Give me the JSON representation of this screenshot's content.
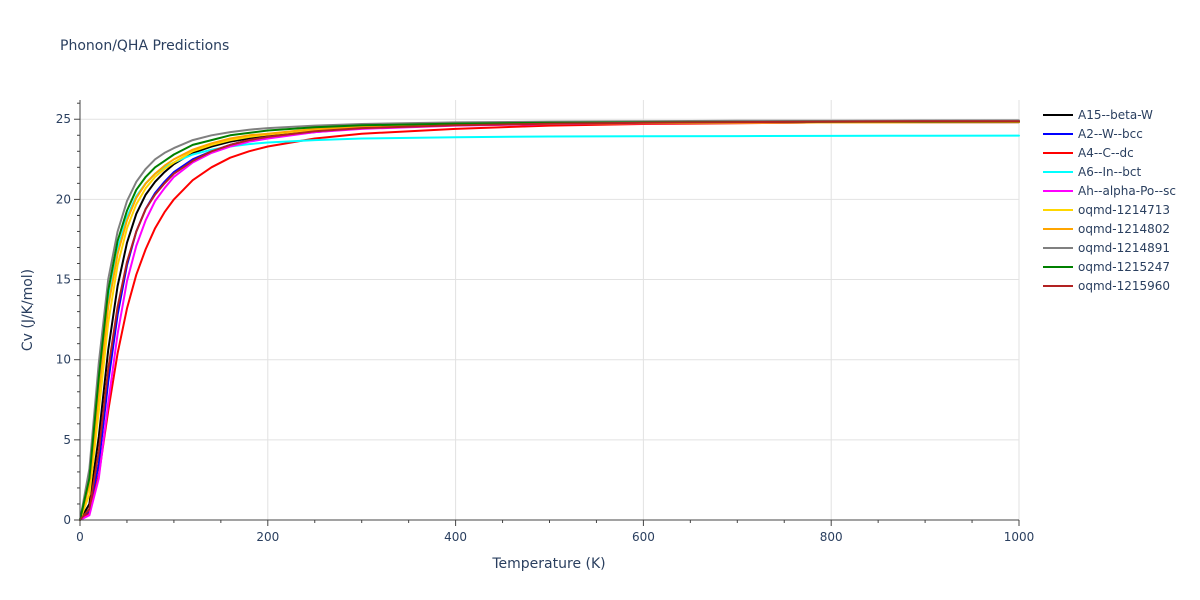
{
  "chart_data": {
    "type": "line",
    "title": "Phonon/QHA Predictions",
    "xlabel": "Temperature (K)",
    "ylabel": "Cv (J/K/mol)",
    "xlim": [
      0,
      1000
    ],
    "ylim": [
      0,
      26.2
    ],
    "x_ticks": [
      0,
      200,
      400,
      600,
      800,
      1000
    ],
    "y_ticks": [
      0,
      5,
      10,
      15,
      20,
      25
    ],
    "grid": true,
    "legend_position": "right",
    "x": [
      0,
      10,
      20,
      30,
      40,
      50,
      60,
      70,
      80,
      90,
      100,
      120,
      140,
      160,
      180,
      200,
      250,
      300,
      400,
      500,
      600,
      700,
      800,
      900,
      1000
    ],
    "series": [
      {
        "name": "A15--beta-W",
        "color": "#000000",
        "values": [
          0,
          1.0,
          5.2,
          10.6,
          14.6,
          17.3,
          19.1,
          20.3,
          21.1,
          21.7,
          22.2,
          22.9,
          23.3,
          23.6,
          23.8,
          24.0,
          24.3,
          24.5,
          24.65,
          24.72,
          24.76,
          24.78,
          24.8,
          24.81,
          24.82
        ]
      },
      {
        "name": "A2--W--bcc",
        "color": "#0000ff",
        "values": [
          0,
          0.5,
          3.5,
          8.6,
          12.8,
          15.9,
          18.0,
          19.4,
          20.4,
          21.1,
          21.7,
          22.5,
          23.0,
          23.4,
          23.7,
          23.9,
          24.2,
          24.45,
          24.62,
          24.7,
          24.75,
          24.78,
          24.8,
          24.81,
          24.82
        ]
      },
      {
        "name": "A4--C--dc",
        "color": "#ff0000",
        "values": [
          0,
          0.4,
          2.8,
          6.8,
          10.4,
          13.2,
          15.3,
          16.9,
          18.2,
          19.2,
          20.0,
          21.2,
          22.0,
          22.6,
          23.0,
          23.3,
          23.8,
          24.1,
          24.4,
          24.6,
          24.7,
          24.75,
          24.8,
          24.82,
          24.84
        ]
      },
      {
        "name": "A6--In--bct",
        "color": "#00ffff",
        "values": [
          0,
          2.3,
          8.2,
          13.6,
          16.9,
          18.9,
          20.2,
          21.0,
          21.6,
          22.0,
          22.3,
          22.8,
          23.1,
          23.3,
          23.45,
          23.55,
          23.7,
          23.8,
          23.88,
          23.92,
          23.94,
          23.95,
          23.96,
          23.97,
          23.98
        ]
      },
      {
        "name": "Ah--alpha-Po--sc",
        "color": "#ff00ff",
        "values": [
          0,
          0.3,
          2.6,
          7.3,
          11.6,
          14.9,
          17.1,
          18.7,
          19.9,
          20.7,
          21.4,
          22.3,
          22.9,
          23.3,
          23.6,
          23.8,
          24.2,
          24.4,
          24.6,
          24.7,
          24.75,
          24.78,
          24.8,
          24.81,
          24.82
        ]
      },
      {
        "name": "oqmd-1214713",
        "color": "#ffd700",
        "values": [
          0,
          1.6,
          6.8,
          12.3,
          15.9,
          18.2,
          19.7,
          20.7,
          21.4,
          21.9,
          22.3,
          23.0,
          23.4,
          23.7,
          23.9,
          24.05,
          24.35,
          24.5,
          24.65,
          24.72,
          24.76,
          24.78,
          24.8,
          24.81,
          24.82
        ]
      },
      {
        "name": "oqmd-1214802",
        "color": "#ffa500",
        "values": [
          0,
          2.2,
          7.9,
          13.3,
          16.6,
          18.7,
          20.1,
          21.0,
          21.6,
          22.1,
          22.5,
          23.1,
          23.5,
          23.8,
          24.0,
          24.1,
          24.4,
          24.55,
          24.68,
          24.74,
          24.77,
          24.79,
          24.8,
          24.81,
          24.82
        ]
      },
      {
        "name": "oqmd-1214891",
        "color": "#808080",
        "values": [
          0,
          3.2,
          9.8,
          15.0,
          18.0,
          19.9,
          21.1,
          21.9,
          22.5,
          22.9,
          23.2,
          23.7,
          24.0,
          24.2,
          24.35,
          24.45,
          24.6,
          24.7,
          24.8,
          24.85,
          24.88,
          24.9,
          24.91,
          24.92,
          24.93
        ]
      },
      {
        "name": "oqmd-1215247",
        "color": "#008000",
        "values": [
          0,
          2.6,
          8.9,
          14.3,
          17.4,
          19.3,
          20.6,
          21.4,
          22.0,
          22.4,
          22.8,
          23.4,
          23.7,
          24.0,
          24.15,
          24.3,
          24.5,
          24.62,
          24.73,
          24.78,
          24.81,
          24.83,
          24.84,
          24.85,
          24.86
        ]
      },
      {
        "name": "oqmd-1215960",
        "color": "#b22222",
        "values": [
          0,
          0.7,
          4.3,
          9.4,
          13.3,
          16.1,
          18.0,
          19.4,
          20.3,
          21.0,
          21.6,
          22.4,
          23.0,
          23.4,
          23.7,
          23.9,
          24.25,
          24.45,
          24.62,
          24.72,
          24.78,
          24.82,
          24.85,
          24.87,
          24.88
        ]
      }
    ]
  }
}
